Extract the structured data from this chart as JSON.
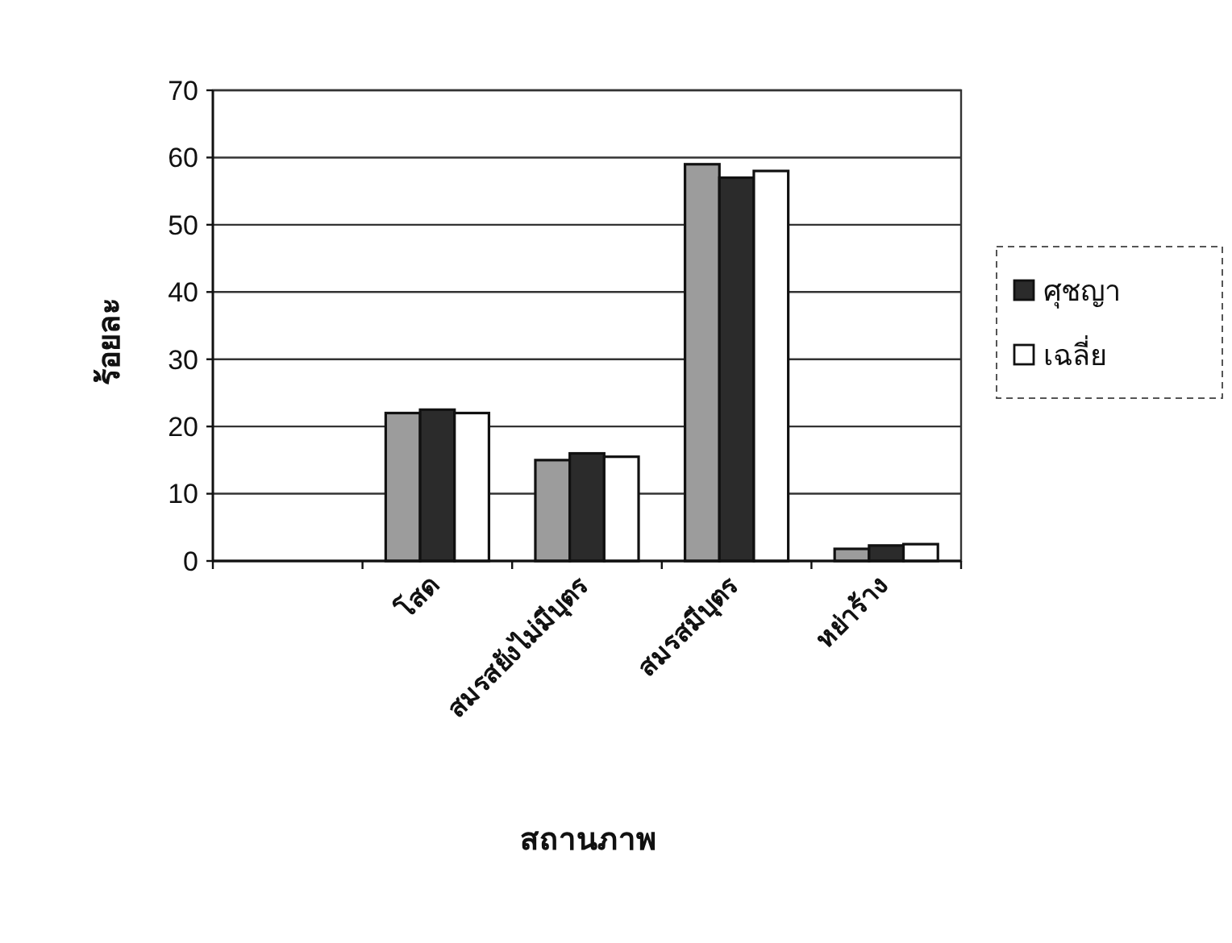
{
  "chart_data": {
    "type": "bar",
    "xlabel": "สถานภาพ",
    "ylabel": "ร้อยละ",
    "categories": [
      null,
      "โสด",
      "สมรสยังไม่มีบุตร",
      "สมรสมีบุตร",
      "หย่าร้าง"
    ],
    "series": [
      {
        "color": "#9c9c9c",
        "values": [
          null,
          22,
          15,
          59,
          1.8
        ]
      },
      {
        "name": "ศุชญา",
        "color": "#2b2b2b",
        "values": [
          null,
          22.5,
          16,
          57,
          2.3
        ]
      },
      {
        "name": "เฉลี่ย",
        "color": "#ffffff",
        "values": [
          null,
          22,
          15.5,
          58,
          2.5
        ]
      }
    ],
    "ylim": [
      0,
      70
    ],
    "yticks": [
      0,
      10,
      20,
      30,
      40,
      50,
      60,
      70
    ],
    "grid": "y",
    "legend": "right"
  }
}
